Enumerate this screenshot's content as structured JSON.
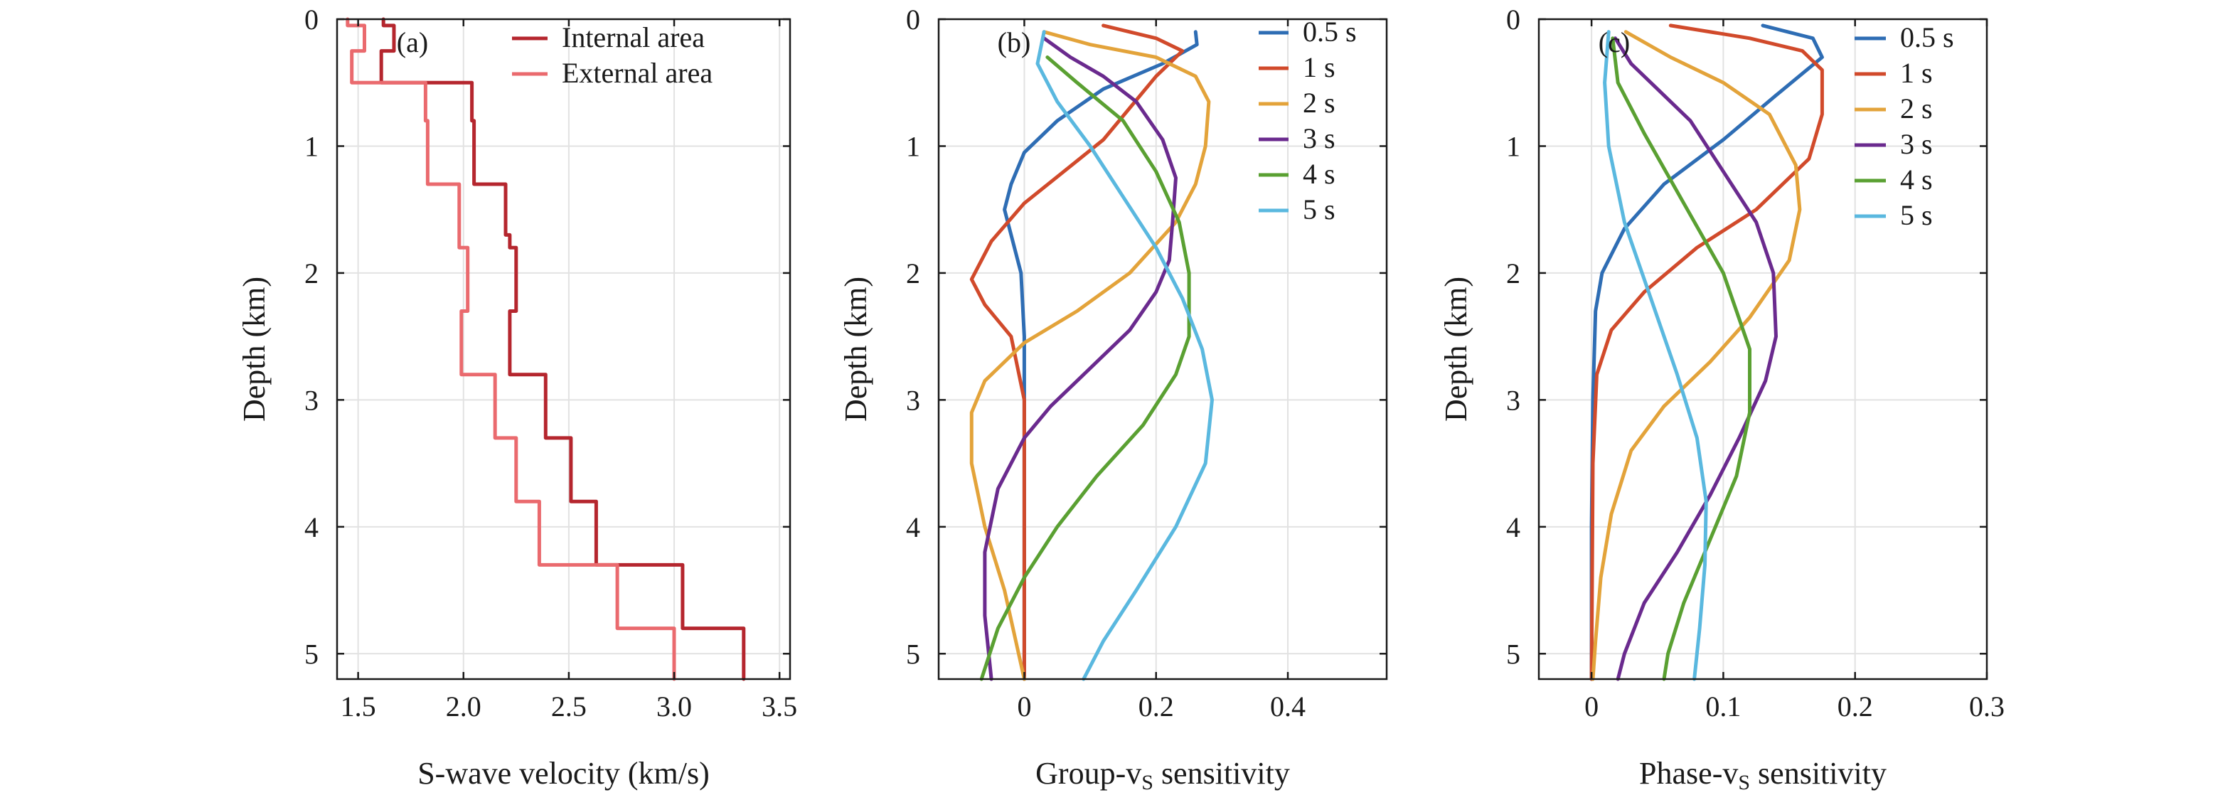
{
  "chart_data": [
    {
      "type": "line",
      "panel_tag": "(a)",
      "xlabel": "S-wave velocity (km/s)",
      "ylabel": "Depth (km)",
      "xlim": [
        1.4,
        3.55
      ],
      "ylim": [
        0,
        5.2
      ],
      "y_inverted": true,
      "grid": true,
      "x_ticks": [
        1.5,
        2.0,
        2.5,
        3.0,
        3.5
      ],
      "x_tick_labels": [
        "1.5",
        "2.0",
        "2.5",
        "3.0",
        "3.5"
      ],
      "y_ticks": [
        0,
        1,
        2,
        3,
        4,
        5
      ],
      "y_tick_labels": [
        "0",
        "1",
        "2",
        "3",
        "4",
        "5"
      ],
      "legend_position": "top-right",
      "series": [
        {
          "name": "Internal area",
          "color": "#b5262e",
          "points": [
            [
              1.62,
              0
            ],
            [
              1.62,
              0.05
            ],
            [
              1.67,
              0.05
            ],
            [
              1.67,
              0.25
            ],
            [
              1.61,
              0.25
            ],
            [
              1.61,
              0.5
            ],
            [
              2.04,
              0.5
            ],
            [
              2.04,
              0.8
            ],
            [
              2.05,
              0.8
            ],
            [
              2.05,
              1.3
            ],
            [
              2.2,
              1.3
            ],
            [
              2.2,
              1.7
            ],
            [
              2.22,
              1.7
            ],
            [
              2.22,
              1.8
            ],
            [
              2.25,
              1.8
            ],
            [
              2.25,
              2.3
            ],
            [
              2.22,
              2.3
            ],
            [
              2.22,
              2.8
            ],
            [
              2.39,
              2.8
            ],
            [
              2.39,
              3.3
            ],
            [
              2.51,
              3.3
            ],
            [
              2.51,
              3.8
            ],
            [
              2.63,
              3.8
            ],
            [
              2.63,
              4.3
            ],
            [
              3.04,
              4.3
            ],
            [
              3.04,
              4.8
            ],
            [
              3.33,
              4.8
            ],
            [
              3.33,
              5.2
            ]
          ]
        },
        {
          "name": "External area",
          "color": "#ea6a6e",
          "points": [
            [
              1.45,
              0
            ],
            [
              1.45,
              0.05
            ],
            [
              1.53,
              0.05
            ],
            [
              1.53,
              0.25
            ],
            [
              1.47,
              0.25
            ],
            [
              1.47,
              0.5
            ],
            [
              1.82,
              0.5
            ],
            [
              1.82,
              0.8
            ],
            [
              1.83,
              0.8
            ],
            [
              1.83,
              1.3
            ],
            [
              1.98,
              1.3
            ],
            [
              1.98,
              1.8
            ],
            [
              2.02,
              1.8
            ],
            [
              2.02,
              2.3
            ],
            [
              1.99,
              2.3
            ],
            [
              1.99,
              2.8
            ],
            [
              2.15,
              2.8
            ],
            [
              2.15,
              3.3
            ],
            [
              2.25,
              3.3
            ],
            [
              2.25,
              3.8
            ],
            [
              2.36,
              3.8
            ],
            [
              2.36,
              4.3
            ],
            [
              2.73,
              4.3
            ],
            [
              2.73,
              4.8
            ],
            [
              3.0,
              4.8
            ],
            [
              3.0,
              5.2
            ]
          ]
        }
      ]
    },
    {
      "type": "line",
      "panel_tag": "(b)",
      "xlabel": "Group-v",
      "xlabel_subscript": "S",
      "xlabel_suffix": " sensitivity",
      "ylabel": "Depth (km)",
      "xlim": [
        -0.13,
        0.55
      ],
      "ylim": [
        0,
        5.2
      ],
      "y_inverted": true,
      "grid": true,
      "x_ticks": [
        0,
        0.2,
        0.4
      ],
      "x_tick_labels": [
        "0",
        "0.2",
        "0.4"
      ],
      "y_ticks": [
        0,
        1,
        2,
        3,
        4,
        5
      ],
      "y_tick_labels": [
        "0",
        "1",
        "2",
        "3",
        "4",
        "5"
      ],
      "legend_position": "top-right",
      "series": [
        {
          "name": "0.5 s",
          "color": "#2e6db4",
          "points": [
            [
              0.26,
              0.1
            ],
            [
              0.262,
              0.2
            ],
            [
              0.21,
              0.35
            ],
            [
              0.12,
              0.55
            ],
            [
              0.05,
              0.8
            ],
            [
              0.0,
              1.05
            ],
            [
              -0.02,
              1.3
            ],
            [
              -0.03,
              1.5
            ],
            [
              -0.02,
              1.7
            ],
            [
              -0.005,
              2.0
            ],
            [
              0.0,
              2.5
            ],
            [
              0.0,
              3.0
            ],
            [
              0.0,
              4.0
            ],
            [
              0.0,
              5.2
            ]
          ]
        },
        {
          "name": "1 s",
          "color": "#d14a2b",
          "points": [
            [
              0.12,
              0.05
            ],
            [
              0.2,
              0.15
            ],
            [
              0.24,
              0.25
            ],
            [
              0.2,
              0.45
            ],
            [
              0.16,
              0.7
            ],
            [
              0.12,
              0.95
            ],
            [
              0.06,
              1.2
            ],
            [
              0.0,
              1.45
            ],
            [
              -0.05,
              1.75
            ],
            [
              -0.08,
              2.05
            ],
            [
              -0.06,
              2.25
            ],
            [
              -0.02,
              2.5
            ],
            [
              0.0,
              3.0
            ],
            [
              0.0,
              4.0
            ],
            [
              0.0,
              5.2
            ]
          ]
        },
        {
          "name": "2 s",
          "color": "#e3a33a",
          "points": [
            [
              0.03,
              0.1
            ],
            [
              0.1,
              0.2
            ],
            [
              0.2,
              0.3
            ],
            [
              0.26,
              0.45
            ],
            [
              0.28,
              0.65
            ],
            [
              0.275,
              1.0
            ],
            [
              0.26,
              1.3
            ],
            [
              0.23,
              1.6
            ],
            [
              0.16,
              2.0
            ],
            [
              0.08,
              2.3
            ],
            [
              0.0,
              2.55
            ],
            [
              -0.06,
              2.85
            ],
            [
              -0.08,
              3.1
            ],
            [
              -0.08,
              3.5
            ],
            [
              -0.06,
              4.0
            ],
            [
              -0.03,
              4.5
            ],
            [
              0.0,
              5.2
            ]
          ]
        },
        {
          "name": "3 s",
          "color": "#6a2a8e",
          "points": [
            [
              0.03,
              0.15
            ],
            [
              0.07,
              0.3
            ],
            [
              0.12,
              0.45
            ],
            [
              0.17,
              0.65
            ],
            [
              0.21,
              0.95
            ],
            [
              0.23,
              1.25
            ],
            [
              0.225,
              1.6
            ],
            [
              0.22,
              1.9
            ],
            [
              0.2,
              2.15
            ],
            [
              0.16,
              2.45
            ],
            [
              0.1,
              2.75
            ],
            [
              0.04,
              3.05
            ],
            [
              0.0,
              3.3
            ],
            [
              -0.04,
              3.7
            ],
            [
              -0.06,
              4.2
            ],
            [
              -0.06,
              4.7
            ],
            [
              -0.05,
              5.2
            ]
          ]
        },
        {
          "name": "4 s",
          "color": "#5aa032",
          "points": [
            [
              0.035,
              0.3
            ],
            [
              0.08,
              0.5
            ],
            [
              0.15,
              0.8
            ],
            [
              0.2,
              1.2
            ],
            [
              0.235,
              1.6
            ],
            [
              0.25,
              2.0
            ],
            [
              0.25,
              2.5
            ],
            [
              0.23,
              2.8
            ],
            [
              0.18,
              3.2
            ],
            [
              0.11,
              3.6
            ],
            [
              0.05,
              4.0
            ],
            [
              0.0,
              4.4
            ],
            [
              -0.04,
              4.8
            ],
            [
              -0.065,
              5.2
            ]
          ]
        },
        {
          "name": "5 s",
          "color": "#5ab8df",
          "points": [
            [
              0.03,
              0.1
            ],
            [
              0.02,
              0.35
            ],
            [
              0.05,
              0.65
            ],
            [
              0.1,
              1.0
            ],
            [
              0.15,
              1.4
            ],
            [
              0.2,
              1.8
            ],
            [
              0.24,
              2.2
            ],
            [
              0.27,
              2.6
            ],
            [
              0.285,
              3.0
            ],
            [
              0.275,
              3.5
            ],
            [
              0.23,
              4.0
            ],
            [
              0.17,
              4.5
            ],
            [
              0.12,
              4.9
            ],
            [
              0.09,
              5.2
            ]
          ]
        }
      ]
    },
    {
      "type": "line",
      "panel_tag": "(c)",
      "xlabel": "Phase-v",
      "xlabel_subscript": "S",
      "xlabel_suffix": " sensitivity",
      "ylabel": "Depth (km)",
      "xlim": [
        -0.04,
        0.3
      ],
      "ylim": [
        0,
        5.2
      ],
      "y_inverted": true,
      "grid": true,
      "x_ticks": [
        0,
        0.1,
        0.2,
        0.3
      ],
      "x_tick_labels": [
        "0",
        "0.1",
        "0.2",
        "0.3"
      ],
      "y_ticks": [
        0,
        1,
        2,
        3,
        4,
        5
      ],
      "y_tick_labels": [
        "0",
        "1",
        "2",
        "3",
        "4",
        "5"
      ],
      "legend_position": "top-right",
      "series": [
        {
          "name": "0.5 s",
          "color": "#2e6db4",
          "points": [
            [
              0.13,
              0.05
            ],
            [
              0.168,
              0.15
            ],
            [
              0.175,
              0.3
            ],
            [
              0.14,
              0.6
            ],
            [
              0.1,
              0.95
            ],
            [
              0.055,
              1.3
            ],
            [
              0.025,
              1.65
            ],
            [
              0.008,
              2.0
            ],
            [
              0.003,
              2.3
            ],
            [
              0.001,
              3.0
            ],
            [
              0.0,
              4.0
            ],
            [
              0.0,
              5.2
            ]
          ]
        },
        {
          "name": "1 s",
          "color": "#d14a2b",
          "points": [
            [
              0.06,
              0.05
            ],
            [
              0.12,
              0.15
            ],
            [
              0.16,
              0.25
            ],
            [
              0.175,
              0.4
            ],
            [
              0.175,
              0.75
            ],
            [
              0.165,
              1.1
            ],
            [
              0.125,
              1.5
            ],
            [
              0.08,
              1.8
            ],
            [
              0.04,
              2.15
            ],
            [
              0.015,
              2.45
            ],
            [
              0.004,
              2.8
            ],
            [
              0.001,
              3.5
            ],
            [
              0.0,
              5.2
            ]
          ]
        },
        {
          "name": "2 s",
          "color": "#e3a33a",
          "points": [
            [
              0.026,
              0.1
            ],
            [
              0.06,
              0.3
            ],
            [
              0.1,
              0.5
            ],
            [
              0.135,
              0.75
            ],
            [
              0.155,
              1.15
            ],
            [
              0.158,
              1.5
            ],
            [
              0.15,
              1.9
            ],
            [
              0.12,
              2.35
            ],
            [
              0.09,
              2.7
            ],
            [
              0.055,
              3.05
            ],
            [
              0.03,
              3.4
            ],
            [
              0.015,
              3.9
            ],
            [
              0.007,
              4.4
            ],
            [
              0.003,
              4.9
            ],
            [
              0.001,
              5.2
            ]
          ]
        },
        {
          "name": "3 s",
          "color": "#6a2a8e",
          "points": [
            [
              0.018,
              0.15
            ],
            [
              0.03,
              0.35
            ],
            [
              0.05,
              0.55
            ],
            [
              0.075,
              0.8
            ],
            [
              0.1,
              1.2
            ],
            [
              0.125,
              1.6
            ],
            [
              0.138,
              2.0
            ],
            [
              0.14,
              2.5
            ],
            [
              0.132,
              2.85
            ],
            [
              0.112,
              3.3
            ],
            [
              0.09,
              3.75
            ],
            [
              0.065,
              4.2
            ],
            [
              0.04,
              4.6
            ],
            [
              0.025,
              5.0
            ],
            [
              0.02,
              5.2
            ]
          ]
        },
        {
          "name": "4 s",
          "color": "#5aa032",
          "points": [
            [
              0.016,
              0.15
            ],
            [
              0.02,
              0.5
            ],
            [
              0.04,
              0.9
            ],
            [
              0.07,
              1.45
            ],
            [
              0.1,
              2.0
            ],
            [
              0.12,
              2.6
            ],
            [
              0.12,
              3.1
            ],
            [
              0.11,
              3.6
            ],
            [
              0.09,
              4.1
            ],
            [
              0.07,
              4.6
            ],
            [
              0.058,
              5.0
            ],
            [
              0.055,
              5.2
            ]
          ]
        },
        {
          "name": "5 s",
          "color": "#5ab8df",
          "points": [
            [
              0.013,
              0.1
            ],
            [
              0.01,
              0.5
            ],
            [
              0.013,
              1.0
            ],
            [
              0.025,
              1.6
            ],
            [
              0.045,
              2.2
            ],
            [
              0.065,
              2.8
            ],
            [
              0.08,
              3.3
            ],
            [
              0.087,
              3.8
            ],
            [
              0.086,
              4.3
            ],
            [
              0.082,
              4.8
            ],
            [
              0.078,
              5.2
            ]
          ]
        }
      ]
    }
  ]
}
